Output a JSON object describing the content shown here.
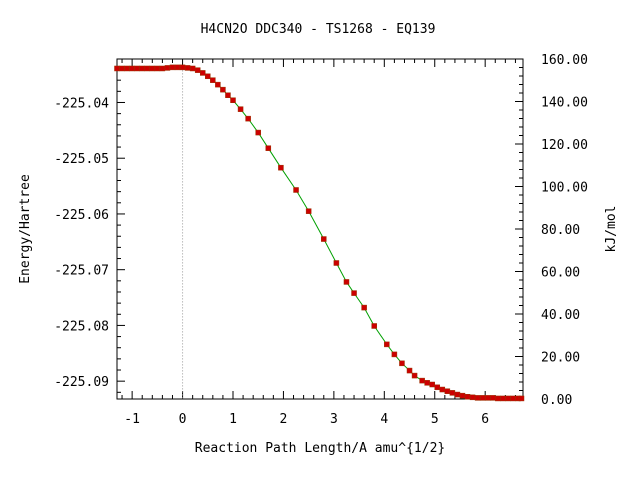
{
  "chart_data": {
    "type": "line",
    "title": "H4CN2O   DDC340 - TS1268 - EQ139",
    "xlabel": "Reaction Path Length/A amu^{1/2}",
    "ylabel": "Energy/Hartree",
    "y2label": "kJ/mol",
    "xlim": [
      -1.3,
      6.75
    ],
    "ylim": [
      -225.0932,
      -225.0322
    ],
    "y2lim": [
      0.0,
      160.0
    ],
    "x_ticks": [
      -1,
      0,
      1,
      2,
      3,
      4,
      5,
      6
    ],
    "x_tick_labels": [
      "-1",
      "0",
      "1",
      "2",
      "3",
      "4",
      "5",
      "6"
    ],
    "y_ticks": [
      -225.04,
      -225.05,
      -225.06,
      -225.07,
      -225.08,
      -225.09
    ],
    "y_tick_labels": [
      "-225.04",
      "-225.05",
      "-225.06",
      "-225.07",
      "-225.08",
      "-225.09"
    ],
    "y2_ticks": [
      0,
      20,
      40,
      60,
      80,
      100,
      120,
      140,
      160
    ],
    "y2_tick_labels": [
      "0.00",
      "20.00",
      "40.00",
      "60.00",
      "80.00",
      "100.00",
      "120.00",
      "140.00",
      "160.00"
    ],
    "reference_line_x": 0,
    "grid": false,
    "line_color": "#00a000",
    "marker_color": "#cc0000",
    "series": [
      {
        "x": [
          -1.3,
          -1.2,
          -1.1,
          -1.0,
          -0.9,
          -0.8,
          -0.7,
          -0.6,
          -0.5,
          -0.4,
          -0.3,
          -0.2,
          -0.1,
          0.0,
          0.1,
          0.2,
          0.3,
          0.4,
          0.5,
          0.6,
          0.7,
          0.8,
          0.9,
          1.0,
          1.15,
          1.3,
          1.5,
          1.7,
          1.95,
          2.25,
          2.5,
          2.8,
          3.05,
          3.25,
          3.4,
          3.6,
          3.8,
          4.05,
          4.2,
          4.35,
          4.5,
          4.6,
          4.75,
          4.85,
          4.95,
          5.05,
          5.15,
          5.25,
          5.35,
          5.45,
          5.55,
          5.65,
          5.75,
          5.85,
          5.95,
          6.05,
          6.15,
          6.25,
          6.35,
          6.45,
          6.55,
          6.65,
          6.72
        ],
        "y": [
          -225.0339,
          -225.0339,
          -225.0339,
          -225.0339,
          -225.0339,
          -225.0339,
          -225.0339,
          -225.0339,
          -225.0339,
          -225.0339,
          -225.0338,
          -225.0337,
          -225.0337,
          -225.0337,
          -225.0338,
          -225.0339,
          -225.0342,
          -225.0347,
          -225.0353,
          -225.036,
          -225.0368,
          -225.0377,
          -225.0387,
          -225.0396,
          -225.0412,
          -225.0429,
          -225.0454,
          -225.0482,
          -225.0517,
          -225.0557,
          -225.0595,
          -225.0645,
          -225.0688,
          -225.0722,
          -225.0742,
          -225.0768,
          -225.0801,
          -225.0834,
          -225.0852,
          -225.0868,
          -225.0881,
          -225.089,
          -225.0899,
          -225.0903,
          -225.0906,
          -225.0911,
          -225.0915,
          -225.0918,
          -225.0921,
          -225.0924,
          -225.0926,
          -225.0928,
          -225.0929,
          -225.093,
          -225.093,
          -225.093,
          -225.093,
          -225.0931,
          -225.0931,
          -225.0931,
          -225.0931,
          -225.0931,
          -225.0931
        ]
      }
    ]
  }
}
